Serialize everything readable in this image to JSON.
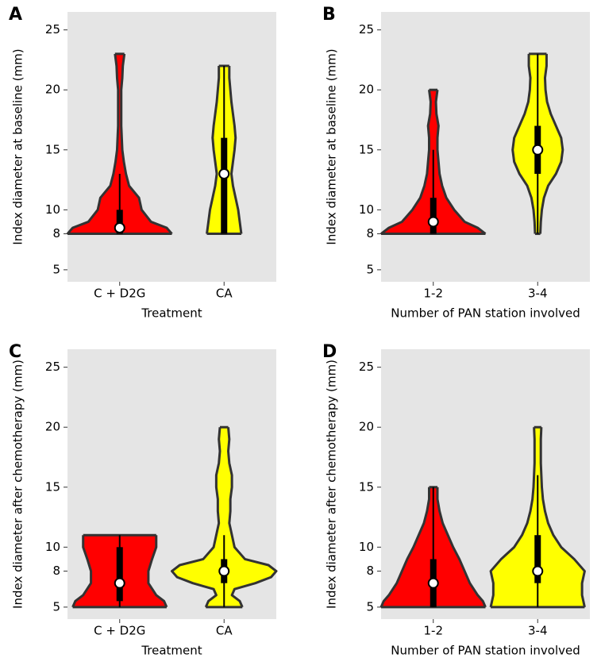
{
  "chart_data": [
    {
      "type": "violin",
      "panel": "A",
      "ylabel": "Index diameter at baseline (mm)",
      "xlabel": "Treatment",
      "categories": [
        "C + D2G",
        "CA"
      ],
      "ylim": [
        4,
        26.5
      ],
      "yticks": [
        5,
        8,
        10,
        15,
        20,
        25
      ],
      "violins": [
        {
          "color": "#ff0000",
          "q1": 8,
          "median": 8.5,
          "q3": 10,
          "whisker_low": 8,
          "whisker_high": 13,
          "density_y": [
            8,
            8.5,
            9,
            10,
            11,
            12,
            13,
            14,
            15,
            17,
            20,
            21,
            22,
            23
          ],
          "density": [
            1,
            0.9,
            0.6,
            0.42,
            0.37,
            0.18,
            0.12,
            0.08,
            0.05,
            0.03,
            0.03,
            0.05,
            0.06,
            0.09
          ]
        },
        {
          "color": "#ffff00",
          "q1": 8,
          "median": 13,
          "q3": 16,
          "whisker_low": 8,
          "whisker_high": 22,
          "density_y": [
            8,
            9,
            10,
            11,
            12,
            13,
            14,
            15,
            16,
            17,
            18,
            19,
            20,
            21,
            22
          ],
          "density": [
            0.33,
            0.3,
            0.27,
            0.22,
            0.17,
            0.14,
            0.17,
            0.2,
            0.22,
            0.2,
            0.17,
            0.14,
            0.12,
            0.1,
            0.1
          ]
        }
      ]
    },
    {
      "type": "violin",
      "panel": "B",
      "ylabel": "Index diameter at baseline (mm)",
      "xlabel": "Number of PAN station involved",
      "categories": [
        "1-2",
        "3-4"
      ],
      "ylim": [
        4,
        26.5
      ],
      "yticks": [
        5,
        8,
        10,
        15,
        20,
        25
      ],
      "violins": [
        {
          "color": "#ff0000",
          "q1": 8,
          "median": 9,
          "q3": 11,
          "whisker_low": 8,
          "whisker_high": 15,
          "density_y": [
            8,
            8.5,
            9,
            10,
            11,
            12,
            13,
            14,
            15,
            16,
            17,
            18,
            19,
            20
          ],
          "density": [
            1,
            0.85,
            0.6,
            0.4,
            0.25,
            0.17,
            0.12,
            0.1,
            0.08,
            0.08,
            0.1,
            0.06,
            0.05,
            0.08
          ]
        },
        {
          "color": "#ffff00",
          "q1": 13,
          "median": 15,
          "q3": 17,
          "whisker_low": 8,
          "whisker_high": 23,
          "density_y": [
            8,
            9,
            10,
            11,
            12,
            13,
            14,
            15,
            16,
            17,
            18,
            19,
            20,
            21,
            22,
            23
          ],
          "density": [
            0.05,
            0.06,
            0.08,
            0.12,
            0.2,
            0.35,
            0.45,
            0.48,
            0.45,
            0.35,
            0.25,
            0.18,
            0.15,
            0.14,
            0.17,
            0.17
          ]
        }
      ]
    },
    {
      "type": "violin",
      "panel": "C",
      "ylabel": "Index diameter after chemotherapy (mm)",
      "xlabel": "Treatment",
      "categories": [
        "C + D2G",
        "CA"
      ],
      "ylim": [
        4,
        26.5
      ],
      "yticks": [
        5,
        8,
        10,
        15,
        20,
        25
      ],
      "violins": [
        {
          "color": "#ff0000",
          "q1": 5.5,
          "median": 7,
          "q3": 10,
          "whisker_low": 5,
          "whisker_high": 11,
          "density_y": [
            5,
            5.5,
            6,
            7,
            8,
            9,
            10,
            11
          ],
          "density": [
            0.9,
            0.85,
            0.7,
            0.55,
            0.55,
            0.62,
            0.7,
            0.7
          ]
        },
        {
          "color": "#ffff00",
          "q1": 7,
          "median": 8,
          "q3": 9,
          "whisker_low": 5,
          "whisker_high": 11,
          "density_y": [
            5,
            5.5,
            6,
            6.5,
            7,
            7.5,
            8,
            8.5,
            9,
            10,
            11,
            12,
            13,
            14,
            15,
            16,
            17,
            18,
            19,
            20
          ],
          "density": [
            0.35,
            0.3,
            0.15,
            0.2,
            0.6,
            0.9,
            1,
            0.85,
            0.4,
            0.2,
            0.15,
            0.1,
            0.12,
            0.12,
            0.15,
            0.15,
            0.1,
            0.08,
            0.1,
            0.08
          ]
        }
      ]
    },
    {
      "type": "violin",
      "panel": "D",
      "ylabel": "Index diameter after chemotherapy (mm)",
      "xlabel": "Number of PAN station involved",
      "categories": [
        "1-2",
        "3-4"
      ],
      "ylim": [
        4,
        26.5
      ],
      "yticks": [
        5,
        8,
        10,
        15,
        20,
        25
      ],
      "violins": [
        {
          "color": "#ff0000",
          "q1": 5,
          "median": 7,
          "q3": 9,
          "whisker_low": 5,
          "whisker_high": 15,
          "density_y": [
            5,
            5.5,
            6,
            7,
            8,
            9,
            10,
            11,
            12,
            13,
            14,
            15
          ],
          "density": [
            1,
            0.95,
            0.85,
            0.7,
            0.6,
            0.5,
            0.38,
            0.28,
            0.18,
            0.12,
            0.08,
            0.08
          ]
        },
        {
          "color": "#ffff00",
          "q1": 7,
          "median": 8,
          "q3": 11,
          "whisker_low": 5,
          "whisker_high": 16,
          "density_y": [
            5,
            6,
            7,
            8,
            9,
            10,
            11,
            12,
            13,
            14,
            15,
            16,
            17,
            18,
            19,
            20
          ],
          "density": [
            0.9,
            0.85,
            0.85,
            0.9,
            0.7,
            0.45,
            0.3,
            0.2,
            0.14,
            0.1,
            0.08,
            0.07,
            0.06,
            0.06,
            0.06,
            0.07
          ]
        }
      ]
    }
  ]
}
